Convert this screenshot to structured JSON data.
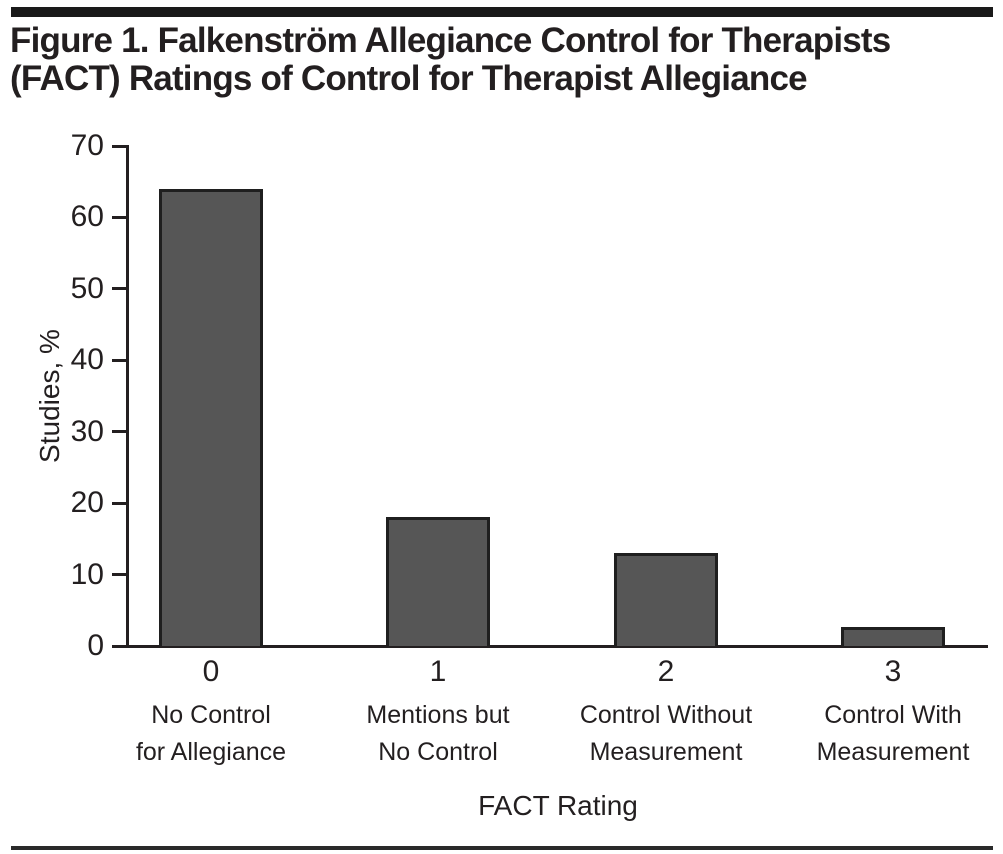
{
  "figure": {
    "title_line1": "Figure 1. Falkenström Allegiance Control for Therapists",
    "title_line2": "(FACT) Ratings of Control for Therapist Allegiance"
  },
  "chart_data": {
    "type": "bar",
    "title": "Figure 1. Falkenström Allegiance Control for Therapists (FACT) Ratings of Control for Therapist Allegiance",
    "categories": [
      "0",
      "1",
      "2",
      "3"
    ],
    "category_sublabels": [
      [
        "No Control",
        "for Allegiance"
      ],
      [
        "Mentions but",
        "No Control"
      ],
      [
        "Control Without",
        "Measurement"
      ],
      [
        "Control With",
        "Measurement"
      ]
    ],
    "values": [
      64,
      18,
      13,
      2.6
    ],
    "xlabel": "FACT Rating",
    "ylabel": "Studies, %",
    "ylim": [
      0,
      70
    ],
    "yticks": [
      0,
      10,
      20,
      30,
      40,
      50,
      60,
      70
    ],
    "grid": false,
    "legend": "none",
    "bar_color": "#565656",
    "bar_border_color": "#1f1f1f",
    "axis_color": "#231f20"
  },
  "colors": {
    "background": "#ffffff",
    "rule": "#1a1a1a",
    "text": "#231f20"
  }
}
